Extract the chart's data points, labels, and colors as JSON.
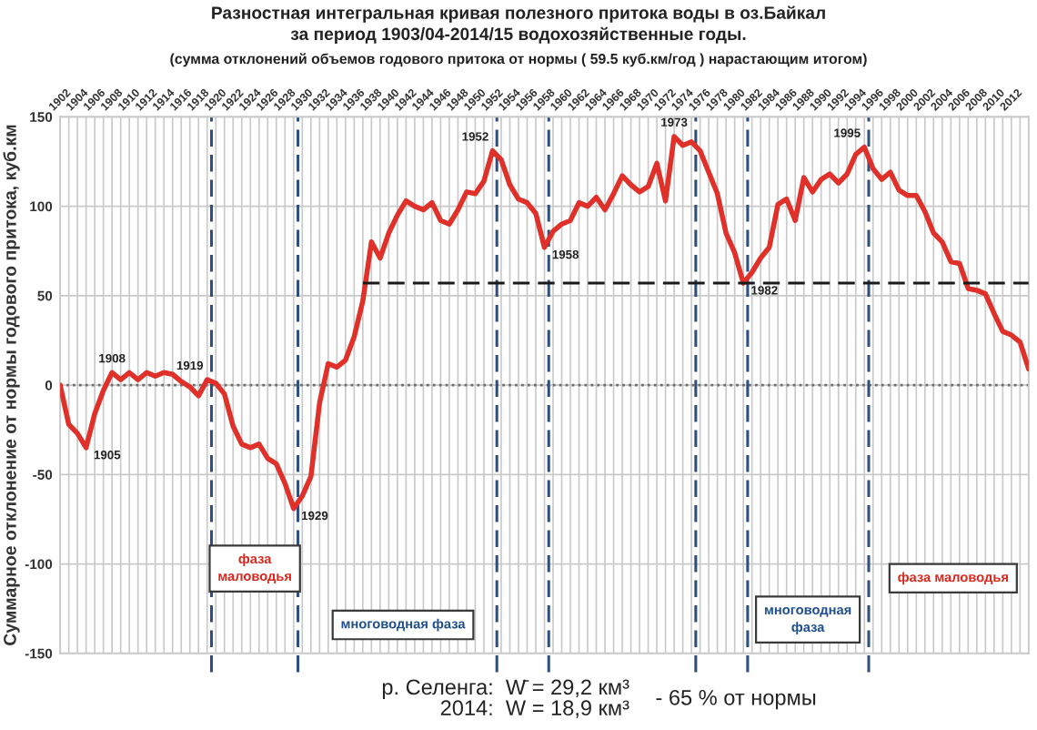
{
  "chart_data": {
    "type": "line",
    "title": "Разностная интегральная кривая полезного притока воды в оз.Байкал\nза период 1903/04-2014/15 водохозяйственные годы.",
    "subtitle": "(сумма отклонений объемов годового притока от нормы ( 59.5 куб.км/год ) нарастающим итогом)",
    "ylabel": "Суммарное отклонение от нормы годового притока, куб.км",
    "x": [
      1902,
      1903,
      1904,
      1905,
      1906,
      1907,
      1908,
      1909,
      1910,
      1911,
      1912,
      1913,
      1914,
      1915,
      1916,
      1917,
      1918,
      1919,
      1920,
      1921,
      1922,
      1923,
      1924,
      1925,
      1926,
      1927,
      1928,
      1929,
      1930,
      1931,
      1932,
      1933,
      1934,
      1935,
      1936,
      1937,
      1938,
      1939,
      1940,
      1941,
      1942,
      1943,
      1944,
      1945,
      1946,
      1947,
      1948,
      1949,
      1950,
      1951,
      1952,
      1953,
      1954,
      1955,
      1956,
      1957,
      1958,
      1959,
      1960,
      1961,
      1962,
      1963,
      1964,
      1965,
      1966,
      1967,
      1968,
      1969,
      1970,
      1971,
      1972,
      1973,
      1974,
      1975,
      1976,
      1977,
      1978,
      1979,
      1980,
      1981,
      1982,
      1983,
      1984,
      1985,
      1986,
      1987,
      1988,
      1989,
      1990,
      1991,
      1992,
      1993,
      1994,
      1995,
      1996,
      1997,
      1998,
      1999,
      2000,
      2001,
      2002,
      2003,
      2004,
      2005,
      2006,
      2007,
      2008,
      2009,
      2010,
      2011,
      2012,
      2013,
      2014
    ],
    "xlim": [
      1902,
      2014
    ],
    "xticks": [
      1902,
      {
        "value": 1903,
        "label": null
      },
      1904,
      {
        "value": 1905,
        "label": null
      },
      1906,
      {
        "value": 1907,
        "label": null
      },
      1908,
      {
        "value": 1909,
        "label": null
      },
      1910,
      {
        "value": 1911,
        "label": null
      },
      1912,
      {
        "value": 1913,
        "label": null
      },
      1914,
      {
        "value": 1915,
        "label": null
      },
      1916,
      {
        "value": 1917,
        "label": null
      },
      1918,
      {
        "value": 1919,
        "label": null
      },
      1920,
      {
        "value": 1921,
        "label": null
      },
      1922,
      {
        "value": 1923,
        "label": null
      },
      1924,
      {
        "value": 1925,
        "label": null
      },
      1926,
      {
        "value": 1927,
        "label": null
      },
      1928,
      {
        "value": 1929,
        "label": null
      },
      1930,
      {
        "value": 1931,
        "label": null
      },
      1932,
      {
        "value": 1933,
        "label": null
      },
      1934,
      {
        "value": 1935,
        "label": null
      },
      1936,
      {
        "value": 1937,
        "label": null
      },
      1938,
      {
        "value": 1939,
        "label": null
      },
      1940,
      {
        "value": 1941,
        "label": null
      },
      1942,
      {
        "value": 1943,
        "label": null
      },
      1944,
      {
        "value": 1945,
        "label": null
      },
      1946,
      {
        "value": 1947,
        "label": null
      },
      1948,
      {
        "value": 1949,
        "label": null
      },
      1950,
      {
        "value": 1951,
        "label": null
      },
      1952,
      {
        "value": 1953,
        "label": null
      },
      1954,
      {
        "value": 1955,
        "label": null
      },
      1956,
      {
        "value": 1957,
        "label": null
      },
      1958,
      {
        "value": 1959,
        "label": null
      },
      1960,
      {
        "value": 1961,
        "label": null
      },
      1962,
      {
        "value": 1963,
        "label": null
      },
      1964,
      {
        "value": 1965,
        "label": null
      },
      1966,
      {
        "value": 1967,
        "label": null
      },
      1968,
      {
        "value": 1969,
        "label": null
      },
      1970,
      {
        "value": 1971,
        "label": null
      },
      1972,
      {
        "value": 1973,
        "label": null
      },
      1974,
      {
        "value": 1975,
        "label": null
      },
      1976,
      {
        "value": 1977,
        "label": null
      },
      1978,
      {
        "value": 1979,
        "label": null
      },
      1980,
      {
        "value": 1981,
        "label": null
      },
      1982,
      {
        "value": 1983,
        "label": null
      },
      1984,
      {
        "value": 1985,
        "label": null
      },
      1986,
      {
        "value": 1987,
        "label": null
      },
      1988,
      {
        "value": 1989,
        "label": null
      },
      1990,
      {
        "value": 1991,
        "label": null
      },
      1992,
      {
        "value": 1993,
        "label": null
      },
      1994,
      {
        "value": 1995,
        "label": null
      },
      1996,
      {
        "value": 1997,
        "label": null
      },
      1998,
      {
        "value": 1999,
        "label": null
      },
      2000,
      {
        "value": 2001,
        "label": null
      },
      2002,
      {
        "value": 2003,
        "label": null
      },
      2004,
      {
        "value": 2005,
        "label": null
      },
      2006,
      {
        "value": 2007,
        "label": null
      },
      2008,
      {
        "value": 2009,
        "label": null
      },
      2010,
      {
        "value": 2011,
        "label": null
      },
      2012,
      {
        "value": 2013,
        "label": null
      },
      {
        "value": 2014,
        "label": null
      }
    ],
    "ylim": [
      -150,
      150
    ],
    "yticks": [
      -150,
      -100,
      -50,
      0,
      50,
      100,
      150
    ],
    "grid": true,
    "series": [
      {
        "color": "#e0302a",
        "values": [
          0,
          -22,
          -27,
          -35,
          -16,
          -3,
          7,
          3,
          7,
          3,
          7,
          5,
          7,
          6,
          2,
          -1,
          -6,
          3,
          1,
          -5,
          -23,
          -33,
          -35,
          -33,
          -41,
          -44,
          -55,
          -69,
          -62,
          -51,
          -10,
          12,
          10,
          14,
          27,
          47,
          80,
          71,
          85,
          95,
          103,
          100,
          98,
          102,
          92,
          90,
          98,
          108,
          107,
          114,
          131,
          126,
          112,
          104,
          102,
          96,
          77,
          86,
          90,
          92,
          102,
          100,
          105,
          98,
          107,
          117,
          112,
          108,
          111,
          124,
          103,
          139,
          134,
          136,
          131,
          119,
          107,
          85,
          74,
          57,
          63,
          71,
          77,
          101,
          104,
          92,
          116,
          108,
          115,
          118,
          113,
          118,
          129,
          133,
          121,
          115,
          119,
          109,
          106,
          106,
          97,
          85,
          80,
          69,
          68,
          54,
          53,
          51,
          40,
          30,
          28,
          24,
          9
        ]
      },
      {
        "type": "line",
        "x": [
          1937,
          2014
        ],
        "values": [
          57,
          57
        ],
        "color": "#1a1a1a",
        "line_style": "dashed"
      }
    ],
    "ref_lines": [
      {
        "axis": "y",
        "value": 0,
        "color": "#6e6e6e",
        "line_style": "dotted"
      },
      {
        "axis": "x",
        "value": 1919.5,
        "color": "#2f4f80",
        "line_style": "dashed"
      },
      {
        "axis": "x",
        "value": 1929.5,
        "color": "#2f4f80",
        "line_style": "dashed"
      },
      {
        "axis": "x",
        "value": 1952.5,
        "color": "#2f4f80",
        "line_style": "dashed"
      },
      {
        "axis": "x",
        "value": 1958.5,
        "color": "#2f4f80",
        "line_style": "dashed"
      },
      {
        "axis": "x",
        "value": 1975.5,
        "color": "#2f4f80",
        "line_style": "dashed"
      },
      {
        "axis": "x",
        "value": 1981.5,
        "color": "#2f4f80",
        "line_style": "dashed"
      },
      {
        "axis": "x",
        "value": 1995.5,
        "color": "#2f4f80",
        "line_style": "dashed"
      }
    ],
    "annotations": [
      {
        "text": "1905",
        "x": 1905,
        "y": -35
      },
      {
        "text": "1908",
        "x": 1908,
        "y": 7
      },
      {
        "text": "1919",
        "x": 1919,
        "y": 3
      },
      {
        "text": "1929",
        "x": 1929,
        "y": -69
      },
      {
        "text": "1952",
        "x": 1952,
        "y": 131
      },
      {
        "text": "1958",
        "x": 1958,
        "y": 77
      },
      {
        "text": "1973",
        "x": 1973,
        "y": 139
      },
      {
        "text": "1982",
        "x": 1981,
        "y": 57
      },
      {
        "text": "1995",
        "x": 1995,
        "y": 133
      },
      "фаза\nмаловодья",
      "многоводная фаза",
      "многоводная\nфаза",
      "фаза маловодья",
      "р. Селенга:  W̄ = 29,2 км³\n2014:  W = 18,9 км³",
      "- 65 % от нормы"
    ]
  }
}
